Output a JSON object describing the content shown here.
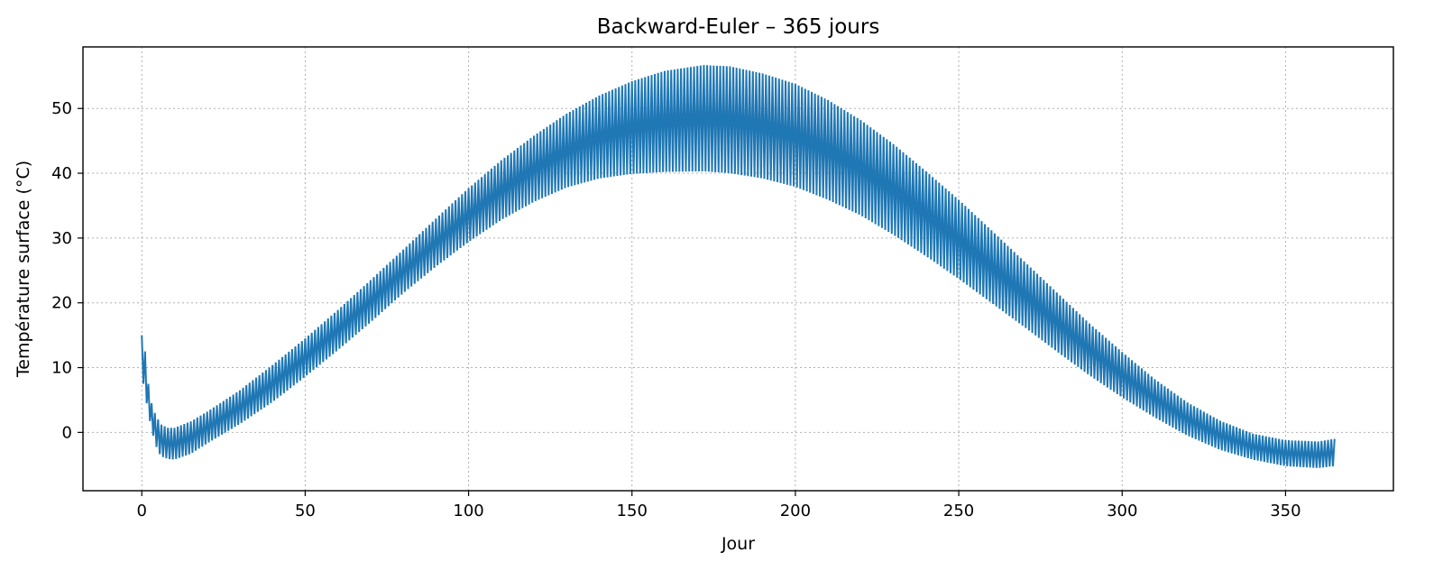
{
  "chart_data": {
    "type": "line",
    "title": "Backward-Euler – 365 jours",
    "xlabel": "Jour",
    "ylabel": "Température surface (°C)",
    "xlim": [
      -18,
      383
    ],
    "ylim": [
      -9,
      59.5
    ],
    "xticks": [
      0,
      50,
      100,
      150,
      200,
      250,
      300,
      350
    ],
    "yticks": [
      0,
      10,
      20,
      30,
      40,
      50
    ],
    "grid": true,
    "series": [
      {
        "color": "#1f77b4",
        "x_start": 0,
        "x_end": 365,
        "envelope_days": [
          0,
          1,
          2,
          3,
          4,
          5,
          6,
          8,
          10,
          15,
          20,
          30,
          40,
          50,
          60,
          70,
          80,
          90,
          100,
          110,
          120,
          130,
          140,
          150,
          160,
          172,
          180,
          190,
          200,
          210,
          220,
          230,
          240,
          250,
          260,
          270,
          280,
          290,
          300,
          310,
          320,
          330,
          340,
          350,
          360,
          365
        ],
        "envelope_upper": [
          15,
          12.5,
          7.5,
          4.5,
          3,
          2,
          1.2,
          0.7,
          0.7,
          1.7,
          3.2,
          6.5,
          10.4,
          14.5,
          18.9,
          23.5,
          28.2,
          33.0,
          37.7,
          42.0,
          45.8,
          49.2,
          52.0,
          54.2,
          55.8,
          56.7,
          56.5,
          55.4,
          53.8,
          51.3,
          48.2,
          44.5,
          40.3,
          35.9,
          31.2,
          26.4,
          21.6,
          16.8,
          12.4,
          8.2,
          4.6,
          1.8,
          -0.2,
          -1.2,
          -1.4,
          -1.0
        ],
        "envelope_lower": [
          9,
          6,
          3,
          0.5,
          -1.5,
          -3,
          -3.7,
          -4.1,
          -4.2,
          -3.3,
          -1.7,
          1.3,
          4.7,
          8.6,
          12.7,
          17.0,
          21.5,
          25.6,
          29.4,
          32.8,
          35.6,
          37.8,
          39.2,
          39.9,
          40.2,
          40.3,
          40.0,
          39.2,
          37.9,
          35.9,
          33.5,
          30.5,
          27.2,
          23.7,
          20.0,
          16.3,
          12.5,
          8.8,
          5.4,
          2.3,
          -0.5,
          -2.7,
          -4.2,
          -5.2,
          -5.5,
          -5.2
        ],
        "oscillations_per_day": 1
      }
    ]
  }
}
